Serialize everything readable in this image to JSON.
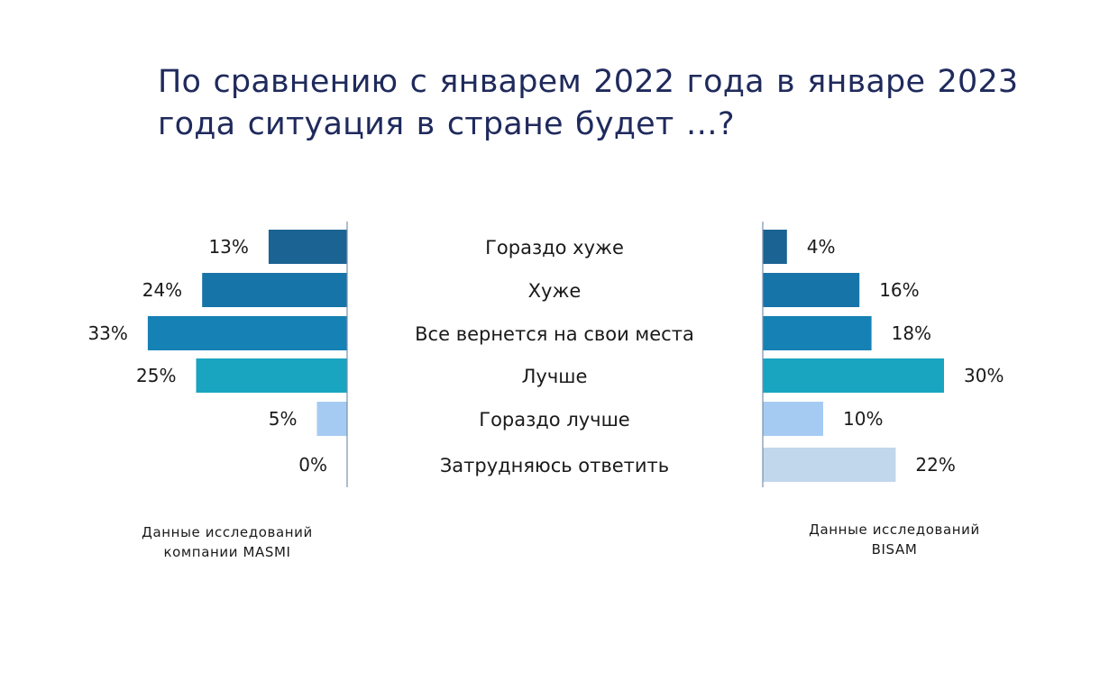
{
  "title": "По сравнению с январем 2022 года в январе 2023 года ситуация в стране будет …?",
  "sources": {
    "masmi": {
      "line1": "Данные исследований",
      "line2": "компании MASMI"
    },
    "bisam": {
      "line1": "Данные исследований",
      "line2": "BISAM"
    }
  },
  "colors": {
    "gorazdo_khuzhe": "#1b6392",
    "khuzhe": "#1774a8",
    "vse_vernetsya": "#1581b5",
    "luchshe": "#19a4bf",
    "gorazdo_luchshe": "#a6cbf2",
    "zatrudnyayus": "#c1d7ec",
    "axis": "#7a8fae"
  },
  "chart_data": {
    "type": "bar",
    "orientation": "horizontal-butterfly",
    "title": "По сравнению с январем 2022 года в январе 2023 года ситуация в стране будет …?",
    "categories": [
      "Гораздо хуже",
      "Хуже",
      "Все вернется на свои места",
      "Лучше",
      "Гораздо лучше",
      "Затрудняюсь ответить"
    ],
    "series": [
      {
        "name": "Данные исследований компании MASMI",
        "values": [
          13,
          24,
          33,
          25,
          5,
          0
        ],
        "labels": [
          "13%",
          "24%",
          "33%",
          "25%",
          "5%",
          "0%"
        ],
        "side": "left"
      },
      {
        "name": "Данные исследований BISAM",
        "values": [
          4,
          16,
          18,
          30,
          10,
          22
        ],
        "labels": [
          "4%",
          "16%",
          "18%",
          "30%",
          "10%",
          "22%"
        ],
        "side": "right"
      }
    ],
    "unit": "%",
    "xlim": [
      0,
      33
    ]
  }
}
